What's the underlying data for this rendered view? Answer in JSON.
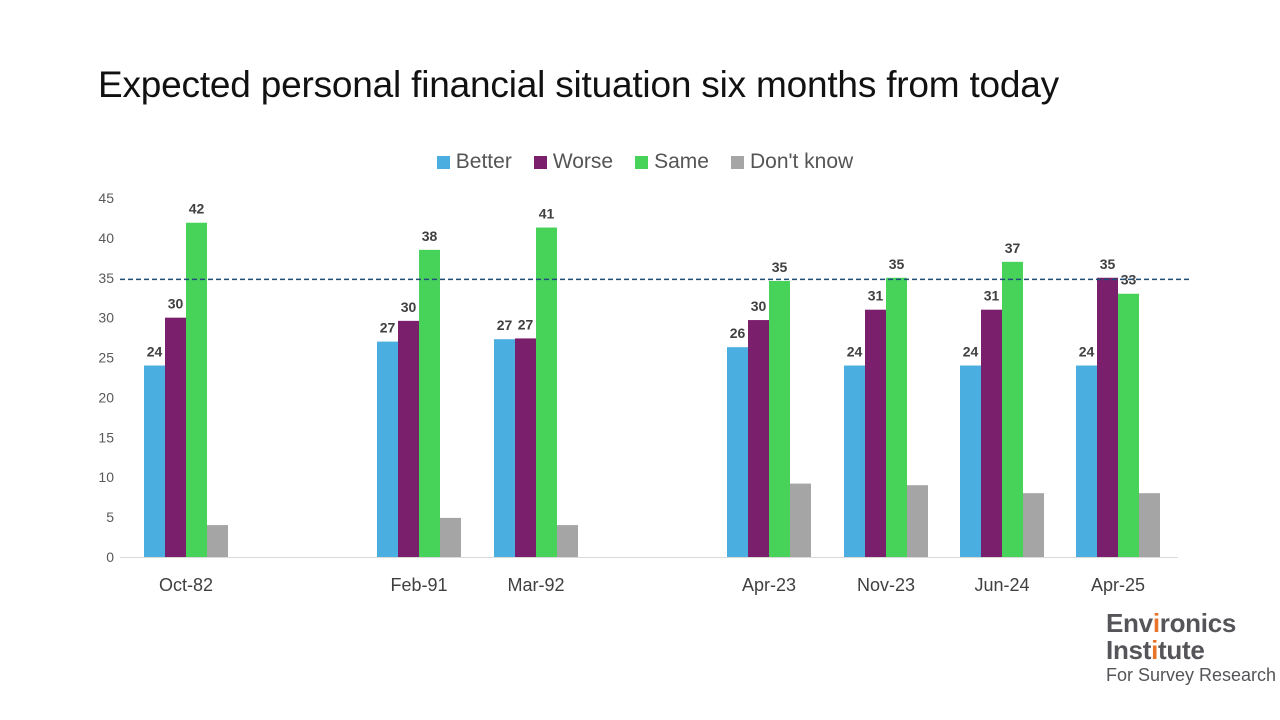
{
  "page": {
    "title": "Expected personal financial situation six months from today"
  },
  "logo": {
    "line1": "Environics",
    "line2": "Institute",
    "line3": "For Survey Research"
  },
  "chart_data": {
    "type": "bar",
    "title": "Expected personal financial situation six months from today",
    "xlabel": "",
    "ylabel": "",
    "categories": [
      "Oct-82",
      "Feb-91",
      "Mar-92",
      "Apr-23",
      "Nov-23",
      "Jun-24",
      "Apr-25"
    ],
    "series": [
      {
        "name": "Better",
        "color": "#4aaee0",
        "values": [
          24,
          27,
          27.3,
          26.3,
          24,
          24,
          24
        ],
        "labels": [
          "24",
          "27",
          "27",
          "26",
          "24",
          "24",
          "24"
        ]
      },
      {
        "name": "Worse",
        "color": "#7a1f6b",
        "values": [
          30,
          29.6,
          27.4,
          29.7,
          31,
          31,
          35
        ],
        "labels": [
          "30",
          "30",
          "27",
          "30",
          "31",
          "31",
          "35"
        ]
      },
      {
        "name": "Same",
        "color": "#47d35a",
        "values": [
          41.9,
          38.5,
          41.3,
          34.6,
          35,
          37,
          33
        ],
        "labels": [
          "42",
          "38",
          "41",
          "35",
          "35",
          "37",
          "33"
        ]
      },
      {
        "name": "Don't know",
        "color": "#a5a5a5",
        "values": [
          4,
          4.9,
          4,
          9.2,
          9,
          8,
          8
        ],
        "labels": [
          "",
          "",
          "",
          "",
          "",
          "",
          ""
        ]
      }
    ],
    "ylim": [
      0,
      45
    ],
    "yticks": [
      0,
      5,
      10,
      15,
      20,
      25,
      30,
      35,
      40,
      45
    ],
    "reference_line": {
      "value": 34.8,
      "style": "dashed",
      "color": "#1f4e79"
    },
    "grid": false,
    "legend_position": "top-center"
  }
}
